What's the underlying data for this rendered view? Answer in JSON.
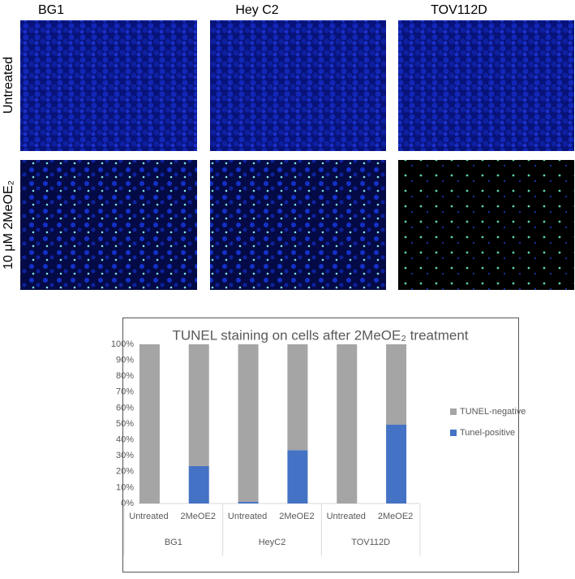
{
  "figure": {
    "column_titles": [
      "BG1",
      "Hey C2",
      "TOV112D"
    ],
    "row_labels": [
      "Untreated",
      "10 μM 2MeOE₂"
    ]
  },
  "chart_data": {
    "type": "bar",
    "stacked": true,
    "title": "TUNEL staining on cells after 2MeOE₂ treatment",
    "categories": [
      "Untreated",
      "2MeOE2",
      "Untreated",
      "2MeOE2",
      "Untreated",
      "2MeOE2"
    ],
    "groups": [
      "BG1",
      "HeyC2",
      "TOV112D"
    ],
    "series": [
      {
        "name": "Tunel-positive",
        "color": "#4472c4",
        "values": [
          0,
          23.5,
          1,
          33.5,
          0,
          49.5
        ]
      },
      {
        "name": "TUNEL-negative",
        "color": "#a5a5a5",
        "values": [
          100,
          76.5,
          99,
          66.5,
          100,
          50.5
        ]
      }
    ],
    "ylim": [
      0,
      100
    ],
    "yticks": [
      {
        "value": 0,
        "label": "0%"
      },
      {
        "value": 10,
        "label": "10%"
      },
      {
        "value": 20,
        "label": "20%"
      },
      {
        "value": 30,
        "label": "30%"
      },
      {
        "value": 40,
        "label": "40%"
      },
      {
        "value": 50,
        "label": "50%"
      },
      {
        "value": 60,
        "label": "60%"
      },
      {
        "value": 70,
        "label": "70%"
      },
      {
        "value": 80,
        "label": "80%"
      },
      {
        "value": 90,
        "label": "90%"
      },
      {
        "value": 100,
        "label": "100%"
      }
    ],
    "legend": "right",
    "grid": false
  }
}
